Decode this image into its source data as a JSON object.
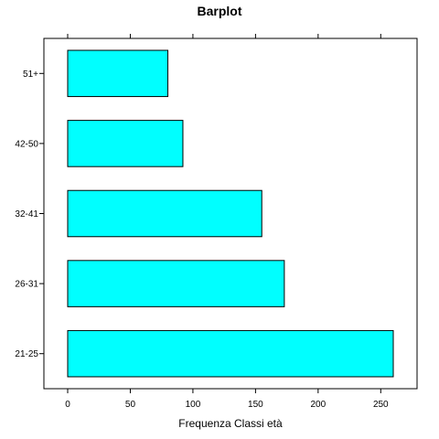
{
  "chart_data": {
    "type": "bar",
    "orientation": "horizontal",
    "title": "Barplot",
    "xlabel": "Frequenza Classi età",
    "ylabel": "",
    "categories": [
      "21-25",
      "26-31",
      "32-41",
      "42-50",
      "51+"
    ],
    "values": [
      260,
      173,
      155,
      92,
      80
    ],
    "xlim": [
      -19,
      279
    ],
    "x_ticks": [
      0,
      50,
      100,
      150,
      200,
      250
    ],
    "grid": false,
    "bar_color": "#00FFFF",
    "bar_border_color": "#000000"
  }
}
